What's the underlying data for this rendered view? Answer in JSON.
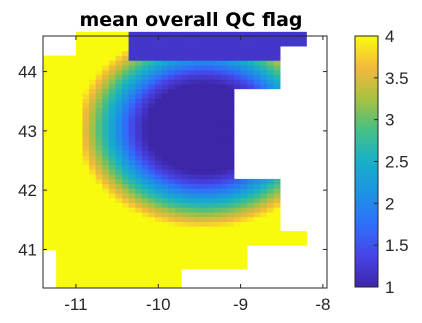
{
  "chart_data": {
    "type": "heatmap",
    "title": "mean overall QC flag",
    "xlabel": "",
    "ylabel": "",
    "xlim": [
      -11.4,
      -7.95
    ],
    "ylim": [
      40.35,
      44.6
    ],
    "x_ticks": [
      -11,
      -10,
      -9,
      -8
    ],
    "x_tick_labels": [
      "-11",
      "-10",
      "-9",
      "-8"
    ],
    "y_ticks": [
      41,
      42,
      43,
      44
    ],
    "y_tick_labels": [
      "41",
      "42",
      "43",
      "44"
    ],
    "colorbar": {
      "colormap": "parula",
      "limits": [
        1,
        4
      ],
      "ticks": [
        1,
        1.5,
        2,
        2.5,
        3,
        3.5,
        4
      ],
      "tick_labels": [
        "1",
        "1.5",
        "2",
        "2.5",
        "3",
        "3.5",
        "4"
      ]
    },
    "regions_description_values": {
      "outer_band_value": 4,
      "offshore_core_value": 1,
      "transition_values": [
        1.5,
        2,
        2.5,
        3,
        3.5
      ]
    },
    "colors": {
      "low": "#3e26a8",
      "mid": "#17beb9",
      "high": "#f9fb0e",
      "land": "#ffffff"
    }
  }
}
